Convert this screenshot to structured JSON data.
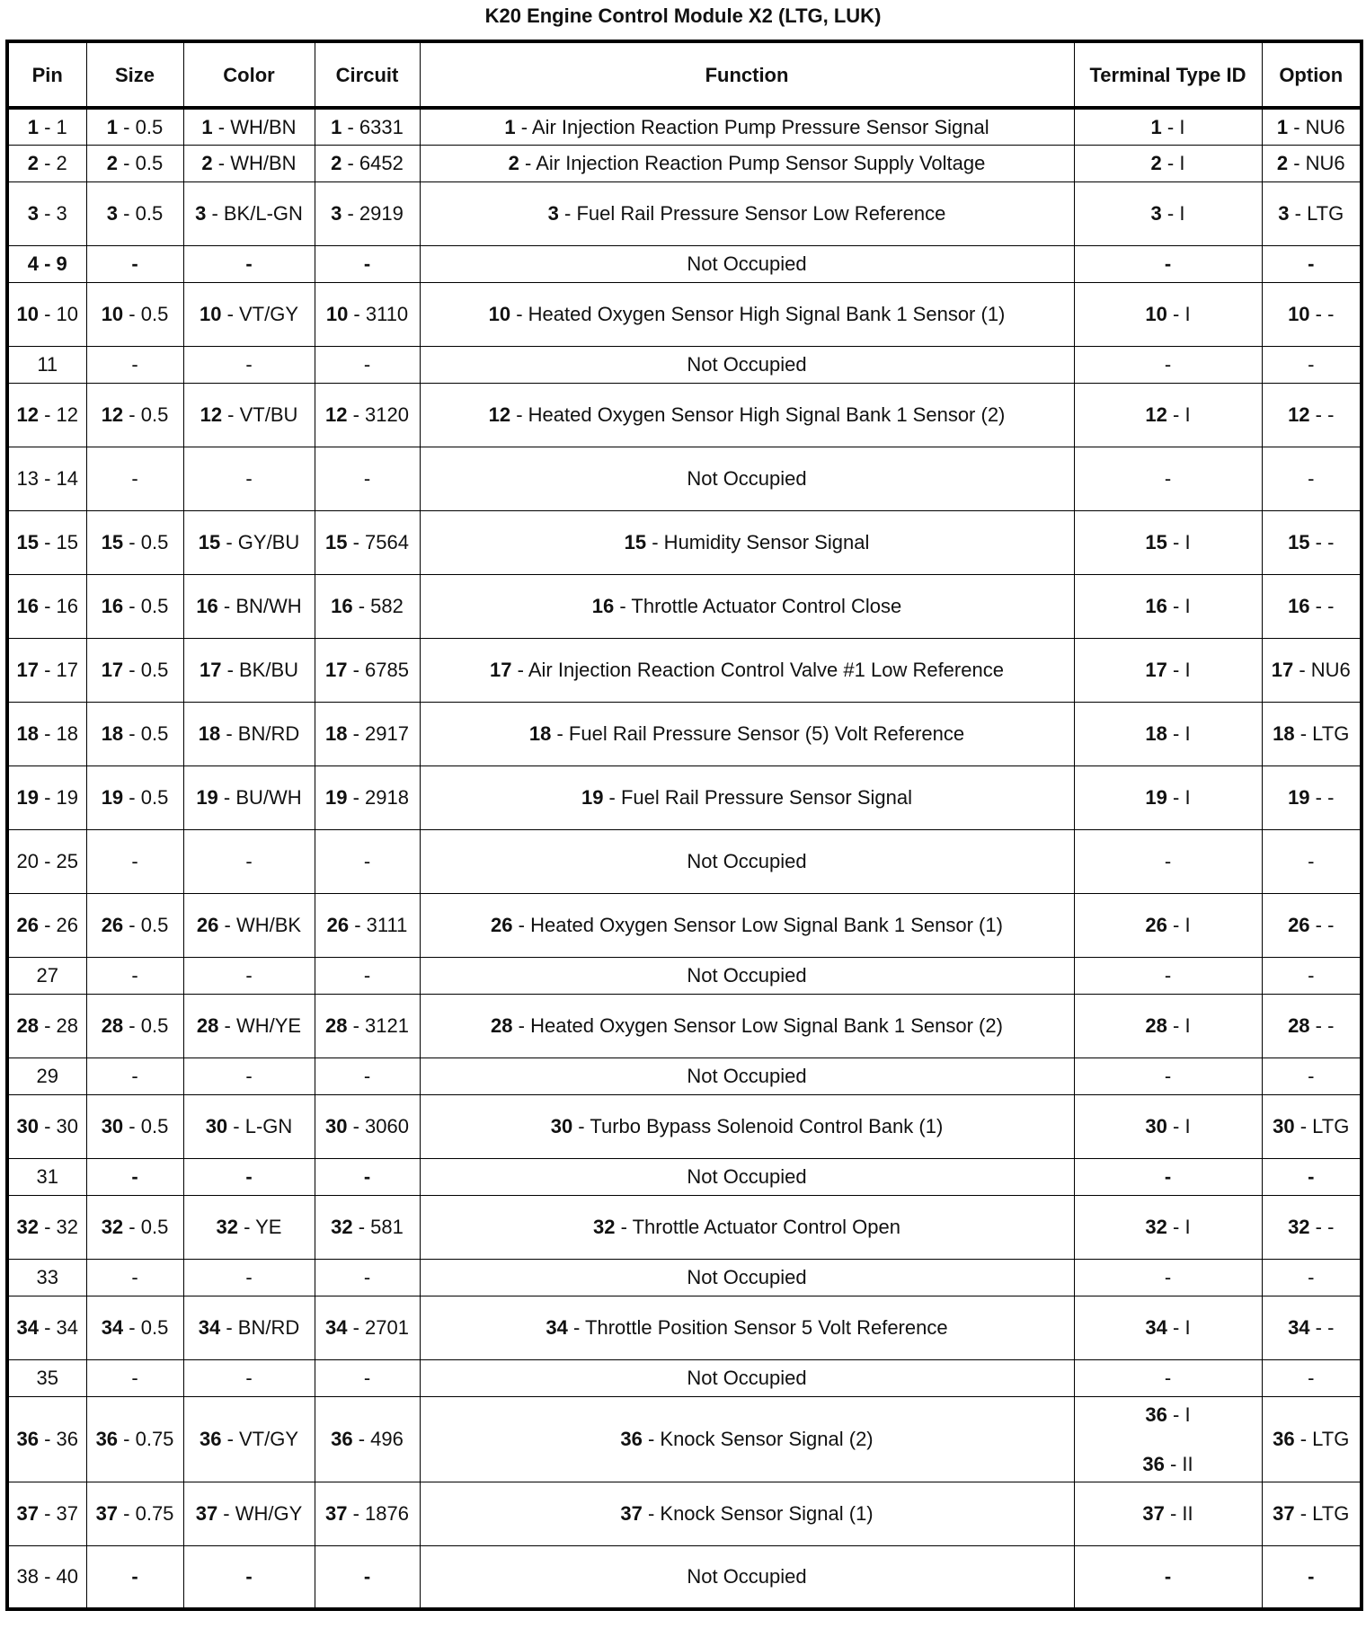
{
  "title": "K20 Engine Control Module X2 (LTG, LUK)",
  "headers": [
    "Pin",
    "Size",
    "Color",
    "Circuit",
    "Function",
    "Terminal Type ID",
    "Option"
  ],
  "rows": [
    {
      "h": 1,
      "cells": [
        [
          "1",
          " - 1"
        ],
        [
          "1",
          " - 0.5"
        ],
        [
          "1",
          " - WH/BN"
        ],
        [
          "1",
          " - 6331"
        ],
        [
          "1",
          " - Air Injection Reaction Pump Pressure Sensor Signal"
        ],
        [
          "1",
          " - I"
        ],
        [
          "1",
          " - NU6"
        ]
      ]
    },
    {
      "h": 1,
      "cells": [
        [
          "2",
          " - 2"
        ],
        [
          "2",
          " - 0.5"
        ],
        [
          "2",
          " - WH/BN"
        ],
        [
          "2",
          " - 6452"
        ],
        [
          "2",
          " - Air Injection Reaction Pump Sensor Supply Voltage"
        ],
        [
          "2",
          " - I"
        ],
        [
          "2",
          " - NU6"
        ]
      ]
    },
    {
      "h": 2,
      "cells": [
        [
          "3",
          " - 3"
        ],
        [
          "3",
          " - 0.5"
        ],
        [
          "3",
          " - BK/L-GN"
        ],
        [
          "3",
          " - 2919"
        ],
        [
          "3",
          " - Fuel Rail Pressure Sensor Low Reference"
        ],
        [
          "3",
          " - I"
        ],
        [
          "3",
          " - LTG"
        ]
      ]
    },
    {
      "h": 1,
      "cells": [
        [
          "4 - 9",
          ""
        ],
        [
          "-",
          ""
        ],
        [
          "-",
          ""
        ],
        [
          "-",
          ""
        ],
        [
          "",
          "Not Occupied"
        ],
        [
          "-",
          ""
        ],
        [
          "-",
          ""
        ]
      ]
    },
    {
      "h": 2,
      "cells": [
        [
          "10",
          " - 10"
        ],
        [
          "10",
          " - 0.5"
        ],
        [
          "10",
          " - VT/GY"
        ],
        [
          "10",
          " - 3110"
        ],
        [
          "10",
          " - Heated Oxygen Sensor High Signal Bank 1 Sensor (1)"
        ],
        [
          "10",
          " - I"
        ],
        [
          "10",
          " - -"
        ]
      ]
    },
    {
      "h": 1,
      "cells": [
        [
          "",
          "11"
        ],
        [
          "",
          "-"
        ],
        [
          "",
          "-"
        ],
        [
          "",
          "-"
        ],
        [
          "",
          "Not Occupied"
        ],
        [
          "",
          "-"
        ],
        [
          "",
          "-"
        ]
      ]
    },
    {
      "h": 2,
      "cells": [
        [
          "12",
          " - 12"
        ],
        [
          "12",
          " - 0.5"
        ],
        [
          "12",
          " - VT/BU"
        ],
        [
          "12",
          " - 3120"
        ],
        [
          "12",
          " - Heated Oxygen Sensor High Signal Bank 1 Sensor (2)"
        ],
        [
          "12",
          " - I"
        ],
        [
          "12",
          " - -"
        ]
      ]
    },
    {
      "h": 2,
      "cells": [
        [
          "",
          "13 - 14"
        ],
        [
          "",
          "-"
        ],
        [
          "",
          "-"
        ],
        [
          "",
          "-"
        ],
        [
          "",
          "Not Occupied"
        ],
        [
          "",
          "-"
        ],
        [
          "",
          "-"
        ]
      ]
    },
    {
      "h": 2,
      "cells": [
        [
          "15",
          " - 15"
        ],
        [
          "15",
          " - 0.5"
        ],
        [
          "15",
          " - GY/BU"
        ],
        [
          "15",
          " - 7564"
        ],
        [
          "15",
          " - Humidity Sensor Signal"
        ],
        [
          "15",
          " - I"
        ],
        [
          "15",
          " - -"
        ]
      ]
    },
    {
      "h": 2,
      "cells": [
        [
          "16",
          " - 16"
        ],
        [
          "16",
          " - 0.5"
        ],
        [
          "16",
          " - BN/WH"
        ],
        [
          "16",
          " - 582"
        ],
        [
          "16",
          " - Throttle Actuator Control Close"
        ],
        [
          "16",
          " - I"
        ],
        [
          "16",
          " - -"
        ]
      ]
    },
    {
      "h": 2,
      "cells": [
        [
          "17",
          " - 17"
        ],
        [
          "17",
          " - 0.5"
        ],
        [
          "17",
          " - BK/BU"
        ],
        [
          "17",
          " - 6785"
        ],
        [
          "17",
          " - Air Injection Reaction Control Valve #1 Low Reference"
        ],
        [
          "17",
          " - I"
        ],
        [
          "17",
          " - NU6"
        ]
      ]
    },
    {
      "h": 2,
      "cells": [
        [
          "18",
          " - 18"
        ],
        [
          "18",
          " - 0.5"
        ],
        [
          "18",
          " - BN/RD"
        ],
        [
          "18",
          " - 2917"
        ],
        [
          "18",
          " - Fuel Rail Pressure Sensor (5) Volt Reference"
        ],
        [
          "18",
          " - I"
        ],
        [
          "18",
          " - LTG"
        ]
      ]
    },
    {
      "h": 2,
      "cells": [
        [
          "19",
          " - 19"
        ],
        [
          "19",
          " - 0.5"
        ],
        [
          "19",
          " - BU/WH"
        ],
        [
          "19",
          " - 2918"
        ],
        [
          "19",
          " - Fuel Rail Pressure Sensor Signal"
        ],
        [
          "19",
          " - I"
        ],
        [
          "19",
          " - -"
        ]
      ]
    },
    {
      "h": 2,
      "cells": [
        [
          "",
          "20 - 25"
        ],
        [
          "",
          "-"
        ],
        [
          "",
          "-"
        ],
        [
          "",
          "-"
        ],
        [
          "",
          "Not Occupied"
        ],
        [
          "",
          "-"
        ],
        [
          "",
          "-"
        ]
      ]
    },
    {
      "h": 2,
      "cells": [
        [
          "26",
          " - 26"
        ],
        [
          "26",
          " - 0.5"
        ],
        [
          "26",
          " - WH/BK"
        ],
        [
          "26",
          " - 3111"
        ],
        [
          "26",
          " - Heated Oxygen Sensor Low Signal Bank 1 Sensor (1)"
        ],
        [
          "26",
          " - I"
        ],
        [
          "26",
          " - -"
        ]
      ]
    },
    {
      "h": 1,
      "cells": [
        [
          "",
          "27"
        ],
        [
          "",
          "-"
        ],
        [
          "",
          "-"
        ],
        [
          "",
          "-"
        ],
        [
          "",
          "Not Occupied"
        ],
        [
          "",
          "-"
        ],
        [
          "",
          "-"
        ]
      ]
    },
    {
      "h": 2,
      "cells": [
        [
          "28",
          " - 28"
        ],
        [
          "28",
          " - 0.5"
        ],
        [
          "28",
          " - WH/YE"
        ],
        [
          "28",
          " - 3121"
        ],
        [
          "28",
          " - Heated Oxygen Sensor Low Signal Bank 1 Sensor (2)"
        ],
        [
          "28",
          " - I"
        ],
        [
          "28",
          " - -"
        ]
      ]
    },
    {
      "h": 1,
      "cells": [
        [
          "",
          "29"
        ],
        [
          "",
          "-"
        ],
        [
          "",
          "-"
        ],
        [
          "",
          "-"
        ],
        [
          "",
          "Not Occupied"
        ],
        [
          "",
          "-"
        ],
        [
          "",
          "-"
        ]
      ]
    },
    {
      "h": 2,
      "cells": [
        [
          "30",
          " - 30"
        ],
        [
          "30",
          " - 0.5"
        ],
        [
          "30",
          " - L-GN"
        ],
        [
          "30",
          " - 3060"
        ],
        [
          "30",
          " - Turbo Bypass Solenoid Control Bank (1)"
        ],
        [
          "30",
          " - I"
        ],
        [
          "30",
          " - LTG"
        ]
      ]
    },
    {
      "h": 1,
      "cells": [
        [
          "",
          "31"
        ],
        [
          "-",
          ""
        ],
        [
          "-",
          ""
        ],
        [
          "-",
          ""
        ],
        [
          "",
          "Not Occupied"
        ],
        [
          "-",
          ""
        ],
        [
          "-",
          ""
        ]
      ]
    },
    {
      "h": 2,
      "cells": [
        [
          "32",
          " - 32"
        ],
        [
          "32",
          " - 0.5"
        ],
        [
          "32",
          " - YE"
        ],
        [
          "32",
          " - 581"
        ],
        [
          "32",
          " - Throttle Actuator Control Open"
        ],
        [
          "32",
          " - I"
        ],
        [
          "32",
          " - -"
        ]
      ]
    },
    {
      "h": 1,
      "cells": [
        [
          "",
          "33"
        ],
        [
          "",
          "-"
        ],
        [
          "",
          "-"
        ],
        [
          "",
          "-"
        ],
        [
          "",
          "Not Occupied"
        ],
        [
          "",
          "-"
        ],
        [
          "",
          "-"
        ]
      ]
    },
    {
      "h": 2,
      "cells": [
        [
          "34",
          " - 34"
        ],
        [
          "34",
          " - 0.5"
        ],
        [
          "34",
          " - BN/RD"
        ],
        [
          "34",
          " - 2701"
        ],
        [
          "34",
          " - Throttle Position Sensor 5 Volt Reference"
        ],
        [
          "34",
          " - I"
        ],
        [
          "34",
          " - -"
        ]
      ]
    },
    {
      "h": 1,
      "cells": [
        [
          "",
          "35"
        ],
        [
          "",
          "-"
        ],
        [
          "",
          "-"
        ],
        [
          "",
          "-"
        ],
        [
          "",
          "Not Occupied"
        ],
        [
          "",
          "-"
        ],
        [
          "",
          "-"
        ]
      ]
    },
    {
      "h": 3,
      "cells": [
        [
          "36",
          " - 36"
        ],
        [
          "36",
          " - 0.75"
        ],
        [
          "36",
          " - VT/GY"
        ],
        [
          "36",
          " - 496"
        ],
        [
          "36",
          " - Knock Sensor Signal (2)"
        ],
        [
          [
            "36",
            " - I"
          ],
          [
            "36",
            " - II"
          ]
        ],
        [
          "36",
          " - LTG"
        ]
      ]
    },
    {
      "h": 2,
      "cells": [
        [
          "37",
          " - 37"
        ],
        [
          "37",
          " - 0.75"
        ],
        [
          "37",
          " - WH/GY"
        ],
        [
          "37",
          " - 1876"
        ],
        [
          "37",
          " - Knock Sensor Signal (1)"
        ],
        [
          "37",
          " - II"
        ],
        [
          "37",
          " - LTG"
        ]
      ]
    },
    {
      "h": 2,
      "cells": [
        [
          "",
          "38 - 40"
        ],
        [
          "-",
          ""
        ],
        [
          "-",
          ""
        ],
        [
          "-",
          ""
        ],
        [
          "",
          "Not Occupied"
        ],
        [
          "-",
          ""
        ],
        [
          "-",
          ""
        ]
      ]
    }
  ]
}
